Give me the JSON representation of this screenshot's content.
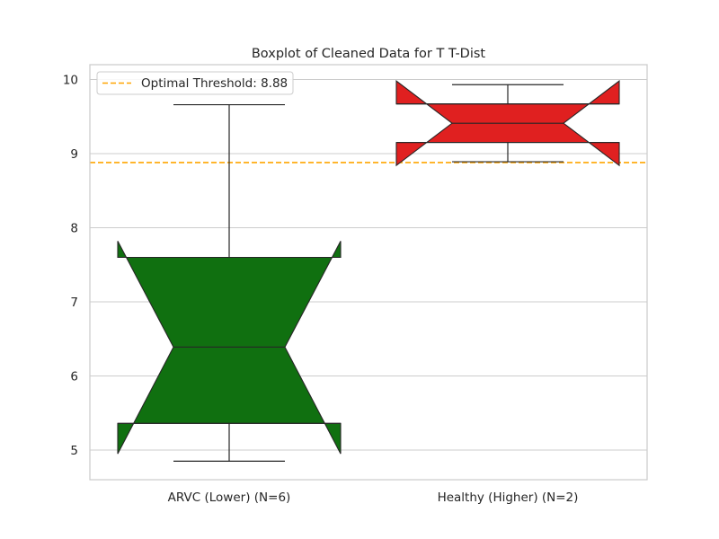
{
  "chart_data": {
    "type": "boxplot",
    "title": "Boxplot of Cleaned Data for T T-Dist",
    "xlabel": "",
    "ylabel": "",
    "ylim": [
      4.6,
      10.2
    ],
    "yticks": [
      5,
      6,
      7,
      8,
      9,
      10
    ],
    "grid": "horizontal",
    "notched": true,
    "categories": [
      "ARVC (Lower) (N=6)",
      "Healthy (Higher) (N=2)"
    ],
    "boxes": [
      {
        "category": "ARVC (Lower) (N=6)",
        "whislo": 4.85,
        "q1": 5.36,
        "med": 6.39,
        "q3": 7.6,
        "whishi": 9.66,
        "notch_lo": 4.95,
        "notch_hi": 7.82,
        "color": "#107010"
      },
      {
        "category": "Healthy (Higher) (N=2)",
        "whislo": 8.89,
        "q1": 9.15,
        "med": 9.41,
        "q3": 9.67,
        "whishi": 9.93,
        "notch_lo": 8.84,
        "notch_hi": 9.98,
        "color": "#e02020"
      }
    ],
    "threshold": {
      "value": 8.88,
      "label": "Optimal Threshold: 8.88",
      "color": "#ffa500",
      "style": "dashed"
    },
    "legend": {
      "position": "top-left",
      "entries": [
        "Optimal Threshold: 8.88"
      ]
    }
  }
}
